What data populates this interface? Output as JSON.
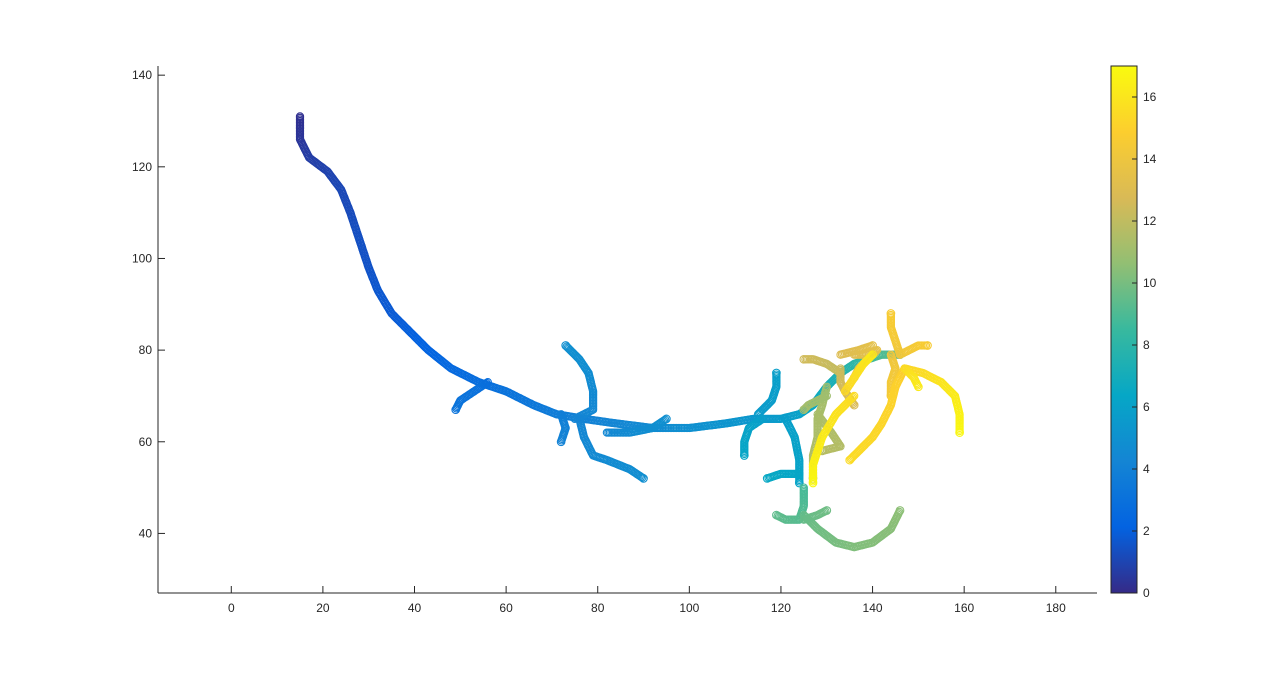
{
  "chart_data": {
    "type": "scatter",
    "xlim": [
      -16,
      189
    ],
    "ylim": [
      27,
      142
    ],
    "x_ticks": [
      0,
      20,
      40,
      60,
      80,
      100,
      120,
      140,
      160,
      180
    ],
    "y_ticks": [
      40,
      60,
      80,
      100,
      120,
      140
    ],
    "grid": false,
    "marker": "circle",
    "colormap": "parula",
    "colorbar": {
      "range": [
        0,
        17
      ],
      "ticks": [
        0,
        2,
        4,
        6,
        8,
        10,
        12,
        14,
        16
      ],
      "position": "right"
    },
    "series": [
      {
        "points": [
          [
            15,
            131,
            0.2
          ],
          [
            15,
            126,
            0.4
          ],
          [
            17,
            122,
            0.7
          ],
          [
            21,
            119,
            0.9
          ],
          [
            24,
            115,
            1.1
          ],
          [
            26,
            110,
            1.2
          ],
          [
            28,
            104,
            1.4
          ],
          [
            30,
            98,
            1.5
          ],
          [
            32,
            93,
            1.7
          ],
          [
            35,
            88,
            1.8
          ],
          [
            39,
            84,
            2.0
          ],
          [
            43,
            80,
            2.2
          ],
          [
            48,
            76,
            2.5
          ],
          [
            54,
            73,
            2.8
          ],
          [
            60,
            71,
            3.1
          ],
          [
            66,
            68,
            3.4
          ],
          [
            71,
            66,
            3.7
          ],
          [
            77,
            65,
            4.0
          ],
          [
            84,
            64,
            4.3
          ],
          [
            92,
            63,
            4.6
          ],
          [
            100,
            63,
            4.9
          ],
          [
            108,
            64,
            5.2
          ],
          [
            114,
            65,
            5.4
          ],
          [
            120,
            65,
            5.7
          ],
          [
            124,
            66,
            6.0
          ],
          [
            127,
            68,
            6.4
          ],
          [
            130,
            72,
            7.0
          ],
          [
            133,
            75,
            7.5
          ],
          [
            136,
            77,
            8.0
          ],
          [
            139,
            78,
            8.5
          ],
          [
            142,
            79,
            9.0
          ],
          [
            146,
            79,
            9.3
          ]
        ]
      },
      {
        "points": [
          [
            56,
            73,
            2.8
          ],
          [
            53,
            71,
            3.0
          ],
          [
            50,
            69,
            3.1
          ],
          [
            49,
            67,
            3.2
          ]
        ]
      },
      {
        "points": [
          [
            72,
            66,
            3.8
          ],
          [
            73,
            63,
            4.0
          ],
          [
            72,
            60,
            4.1
          ]
        ]
      },
      {
        "points": [
          [
            75,
            65,
            4.2
          ],
          [
            79,
            67,
            4.4
          ],
          [
            79,
            71,
            4.5
          ],
          [
            78,
            75,
            4.7
          ],
          [
            76,
            78,
            4.8
          ],
          [
            73,
            81,
            4.9
          ]
        ]
      },
      {
        "points": [
          [
            76,
            65,
            4.2
          ],
          [
            77,
            61,
            4.4
          ],
          [
            79,
            57,
            4.5
          ],
          [
            82,
            56,
            4.6
          ],
          [
            87,
            54,
            4.7
          ],
          [
            90,
            52,
            4.8
          ]
        ]
      },
      {
        "points": [
          [
            82,
            62,
            4.4
          ],
          [
            87,
            62,
            4.6
          ],
          [
            92,
            63,
            4.8
          ],
          [
            95,
            65,
            4.9
          ]
        ]
      },
      {
        "points": [
          [
            115,
            66,
            5.6
          ],
          [
            118,
            69,
            5.7
          ],
          [
            119,
            72,
            5.8
          ],
          [
            119,
            75,
            5.9
          ]
        ]
      },
      {
        "points": [
          [
            116,
            65,
            5.8
          ],
          [
            113,
            63,
            6.1
          ],
          [
            112,
            60,
            6.2
          ],
          [
            112,
            57,
            6.3
          ]
        ]
      },
      {
        "points": [
          [
            121,
            65,
            5.8
          ],
          [
            123,
            61,
            6.0
          ],
          [
            124,
            56,
            6.1
          ],
          [
            124,
            51,
            6.2
          ]
        ]
      },
      {
        "points": [
          [
            124,
            53,
            6.3
          ],
          [
            120,
            53,
            6.4
          ],
          [
            117,
            52,
            6.5
          ]
        ]
      },
      {
        "points": [
          [
            125,
            50,
            8.8
          ],
          [
            125,
            46,
            9.0
          ],
          [
            124,
            43,
            9.2
          ],
          [
            121,
            43,
            9.3
          ],
          [
            119,
            44,
            9.4
          ]
        ]
      },
      {
        "points": [
          [
            125,
            44,
            9.6
          ],
          [
            128,
            41,
            9.8
          ],
          [
            132,
            38,
            10.0
          ],
          [
            136,
            37,
            10.2
          ],
          [
            140,
            38,
            10.3
          ],
          [
            144,
            41,
            10.4
          ],
          [
            146,
            45,
            10.5
          ]
        ]
      },
      {
        "points": [
          [
            125,
            43,
            9.6
          ],
          [
            128,
            44,
            9.7
          ],
          [
            130,
            45,
            9.8
          ]
        ]
      },
      {
        "points": [
          [
            130,
            72,
            11.0
          ],
          [
            129,
            68,
            11.2
          ],
          [
            128,
            65,
            11.3
          ],
          [
            128,
            61,
            11.4
          ],
          [
            127,
            57,
            11.5
          ],
          [
            127,
            52,
            11.6
          ]
        ]
      },
      {
        "points": [
          [
            130,
            70,
            11.0
          ],
          [
            126,
            68,
            11.1
          ],
          [
            125,
            67,
            11.2
          ]
        ]
      },
      {
        "points": [
          [
            128,
            66,
            11.3
          ],
          [
            131,
            62,
            11.5
          ],
          [
            133,
            59,
            11.6
          ],
          [
            129,
            58,
            11.7
          ]
        ]
      },
      {
        "points": [
          [
            133,
            75,
            12.0
          ],
          [
            130,
            77,
            12.2
          ],
          [
            127,
            78,
            12.4
          ],
          [
            125,
            78,
            12.5
          ]
        ]
      },
      {
        "points": [
          [
            133,
            76,
            12.3
          ],
          [
            133,
            73,
            12.5
          ],
          [
            134,
            71,
            12.6
          ],
          [
            136,
            68,
            12.8
          ]
        ]
      },
      {
        "points": [
          [
            136,
            79,
            13.0
          ],
          [
            138,
            79,
            13.2
          ],
          [
            141,
            80,
            13.4
          ],
          [
            139,
            78,
            13.5
          ],
          [
            137,
            76,
            13.6
          ],
          [
            136,
            74,
            13.7
          ]
        ]
      },
      {
        "points": [
          [
            133,
            79,
            13.0
          ],
          [
            137,
            80,
            13.2
          ],
          [
            140,
            81,
            13.4
          ]
        ]
      },
      {
        "points": [
          [
            144,
            79,
            14.0
          ],
          [
            145,
            76,
            14.2
          ],
          [
            144,
            73,
            14.3
          ],
          [
            144,
            70,
            14.4
          ]
        ]
      },
      {
        "points": [
          [
            146,
            79,
            14.0
          ],
          [
            145,
            82,
            14.3
          ],
          [
            144,
            85,
            14.5
          ],
          [
            144,
            88,
            14.6
          ]
        ]
      },
      {
        "points": [
          [
            146,
            79,
            14.0
          ],
          [
            148,
            80,
            14.3
          ],
          [
            150,
            81,
            14.5
          ],
          [
            152,
            81,
            14.6
          ]
        ]
      },
      {
        "points": [
          [
            147,
            76,
            14.8
          ],
          [
            145,
            72,
            15.0
          ],
          [
            144,
            68,
            15.1
          ],
          [
            142,
            64,
            15.2
          ],
          [
            140,
            61,
            15.3
          ],
          [
            137,
            58,
            15.4
          ],
          [
            135,
            56,
            15.5
          ]
        ]
      },
      {
        "points": [
          [
            147,
            76,
            15.2
          ],
          [
            151,
            75,
            15.5
          ],
          [
            155,
            73,
            15.9
          ],
          [
            158,
            70,
            16.2
          ],
          [
            159,
            66,
            16.5
          ],
          [
            159,
            62,
            16.8
          ]
        ]
      },
      {
        "points": [
          [
            147,
            76,
            15.5
          ],
          [
            149,
            74,
            15.9
          ],
          [
            150,
            72,
            16.2
          ]
        ]
      },
      {
        "points": [
          [
            136,
            70,
            15.5
          ],
          [
            132,
            66,
            15.8
          ],
          [
            129,
            61,
            16.2
          ],
          [
            127,
            55,
            16.5
          ],
          [
            127,
            51,
            16.8
          ]
        ]
      },
      {
        "points": [
          [
            134,
            71,
            15.3
          ],
          [
            136,
            74,
            15.6
          ],
          [
            138,
            77,
            15.9
          ],
          [
            140,
            79,
            16.2
          ]
        ]
      }
    ]
  }
}
